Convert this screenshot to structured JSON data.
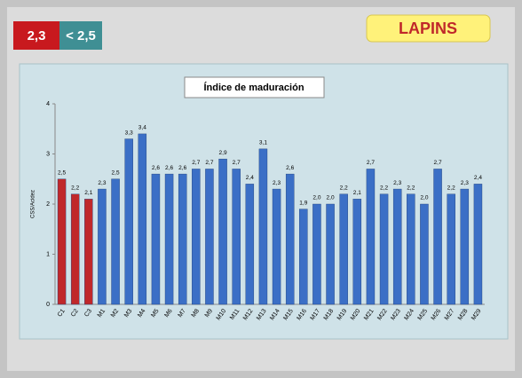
{
  "header": {
    "value": "2,3",
    "threshold": "< 2,5",
    "variety": "LAPINS"
  },
  "chart_data": {
    "type": "bar",
    "title": "Índice de maduración",
    "y_label": "CSS/Acidez",
    "categories": [
      "C1",
      "C2",
      "C3",
      "M1",
      "M2",
      "M3",
      "M4",
      "M5",
      "M6",
      "M7",
      "M8",
      "M9",
      "M10",
      "M11",
      "M12",
      "M13",
      "M14",
      "M15",
      "M16",
      "M17",
      "M18",
      "M19",
      "M20",
      "M21",
      "M22",
      "M23",
      "M24",
      "M25",
      "M26",
      "M27",
      "M28",
      "M29"
    ],
    "values": [
      2.5,
      2.2,
      2.1,
      2.3,
      2.5,
      3.3,
      3.4,
      2.6,
      2.6,
      2.6,
      2.7,
      2.7,
      2.9,
      2.7,
      2.4,
      3.1,
      2.3,
      2.6,
      1.9,
      2.0,
      2.0,
      2.2,
      2.1,
      2.7,
      2.2,
      2.3,
      2.2,
      2.0,
      2.7,
      2.2,
      2.3,
      2.4
    ],
    "value_labels": [
      "2,5",
      "2,2",
      "2,1",
      "2,3",
      "2,5",
      "3,3",
      "3,4",
      "2,6",
      "2,6",
      "2,6",
      "2,7",
      "2,7",
      "2,9",
      "2,7",
      "2,4",
      "3,1",
      "2,3",
      "2,6",
      "1,9",
      "2,0",
      "2,0",
      "2,2",
      "2,1",
      "2,7",
      "2,2",
      "2,3",
      "2,2",
      "2,0",
      "2,7",
      "2,2",
      "2,3",
      "2,4"
    ],
    "colors": [
      "#c0282a",
      "#c0282a",
      "#c0282a",
      "#3b6fc6",
      "#3b6fc6",
      "#3b6fc6",
      "#3b6fc6",
      "#3b6fc6",
      "#3b6fc6",
      "#3b6fc6",
      "#3b6fc6",
      "#3b6fc6",
      "#3b6fc6",
      "#3b6fc6",
      "#3b6fc6",
      "#3b6fc6",
      "#3b6fc6",
      "#3b6fc6",
      "#3b6fc6",
      "#3b6fc6",
      "#3b6fc6",
      "#3b6fc6",
      "#3b6fc6",
      "#3b6fc6",
      "#3b6fc6",
      "#3b6fc6",
      "#3b6fc6",
      "#3b6fc6",
      "#3b6fc6",
      "#3b6fc6",
      "#3b6fc6",
      "#3b6fc6"
    ],
    "ylim": [
      0,
      4
    ],
    "yticks": [
      0,
      1,
      2,
      3,
      4
    ],
    "grid": false
  }
}
